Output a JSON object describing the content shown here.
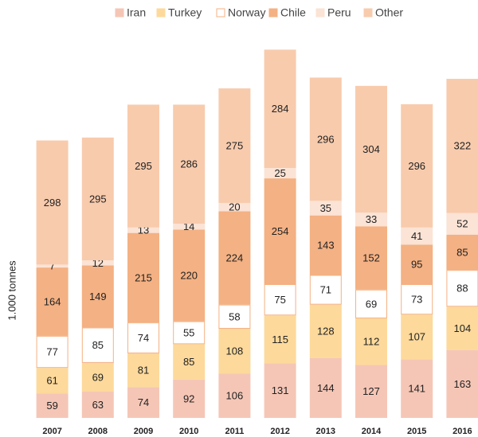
{
  "chart_data": {
    "type": "stacked_bar",
    "y_label": "1.000 tonnes",
    "categories": [
      "2007",
      "2008",
      "2009",
      "2010",
      "2011",
      "2012",
      "2013",
      "2014",
      "2015",
      "2016"
    ],
    "series": [
      {
        "name": "Iran",
        "color": "#f5c6b6",
        "edge": "#f5c6b6",
        "values": [
          59,
          63,
          74,
          92,
          106,
          131,
          144,
          127,
          141,
          163
        ]
      },
      {
        "name": "Turkey",
        "color": "#fdd99b",
        "edge": "#fdd99b",
        "values": [
          61,
          69,
          81,
          85,
          108,
          115,
          128,
          112,
          107,
          104
        ]
      },
      {
        "name": "Norway",
        "color": "#ffffff",
        "edge": "#f4b183",
        "values": [
          77,
          85,
          74,
          55,
          58,
          75,
          71,
          69,
          73,
          88
        ]
      },
      {
        "name": "Chile",
        "color": "#f4b183",
        "edge": "#f4b183",
        "values": [
          164,
          149,
          215,
          220,
          224,
          254,
          143,
          152,
          95,
          85
        ]
      },
      {
        "name": "Peru",
        "color": "#fbe3d5",
        "edge": "#fbe3d5",
        "values": [
          7,
          12,
          13,
          14,
          20,
          25,
          35,
          33,
          41,
          52
        ]
      },
      {
        "name": "Other",
        "color": "#f8cbad",
        "edge": "#f8cbad",
        "values": [
          298,
          295,
          295,
          286,
          275,
          284,
          296,
          304,
          296,
          322
        ]
      }
    ],
    "ylim": [
      0,
      900
    ],
    "legend": "top"
  }
}
